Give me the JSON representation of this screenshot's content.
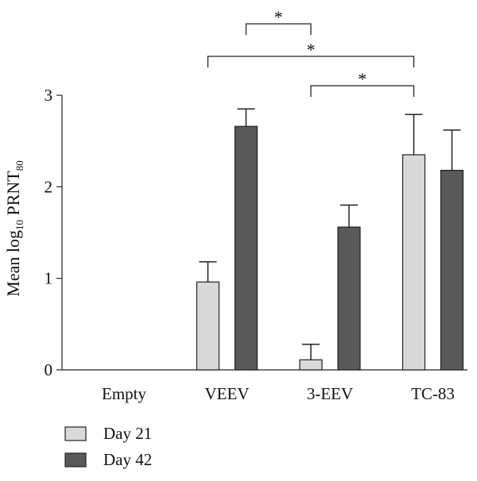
{
  "chart_data": {
    "type": "bar",
    "categories": [
      "Empty",
      "VEEV",
      "3-EEV",
      "TC-83"
    ],
    "series": [
      {
        "name": "Day 21",
        "values": [
          0,
          0.96,
          0.11,
          2.35
        ],
        "errors": [
          0,
          0.22,
          0.17,
          0.44
        ],
        "color": "#d9d9d9"
      },
      {
        "name": "Day 42",
        "values": [
          0,
          2.66,
          1.56,
          2.18
        ],
        "errors": [
          0,
          0.19,
          0.24,
          0.44
        ],
        "color": "#595959"
      }
    ],
    "ylabel": {
      "base": "Mean log",
      "sub1": "10",
      "mid": " PRNT",
      "sub2": "80"
    },
    "ylim": [
      0,
      3
    ],
    "yticks": [
      "0",
      "1",
      "2",
      "3"
    ],
    "legend": "bottom-left",
    "grid": false,
    "significance": [
      {
        "label": "*",
        "from": {
          "category": 1,
          "series": 1
        },
        "to": {
          "category": 2,
          "series": 0
        }
      },
      {
        "label": "*",
        "from": {
          "category": 1,
          "series": 0
        },
        "to": {
          "category": 3,
          "series": 0
        }
      },
      {
        "label": "*",
        "from": {
          "category": 2,
          "series": 0
        },
        "to": {
          "category": 3,
          "series": 0
        }
      }
    ]
  }
}
